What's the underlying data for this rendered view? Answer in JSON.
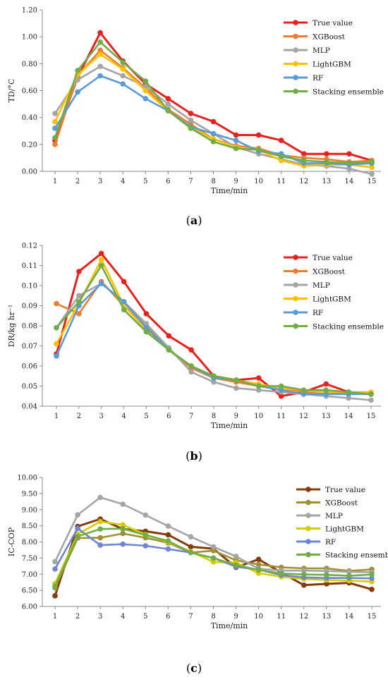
{
  "chart_data": [
    {
      "type": "line",
      "panel_label": "(a)",
      "panel_letter": "a",
      "xlabel": "Time/min",
      "ylabel": "TD/°C",
      "ylim": [
        0,
        1.2
      ],
      "y_ticks": [
        "0.00",
        "0.20",
        "0.40",
        "0.60",
        "0.80",
        "1.00",
        "1.20"
      ],
      "x": [
        1,
        2,
        3,
        4,
        5,
        6,
        7,
        8,
        9,
        10,
        11,
        12,
        13,
        14,
        15
      ],
      "grid": false,
      "legend_position": "top-right",
      "series": [
        {
          "name": "True value",
          "color": "#e8211c",
          "values": [
            0.23,
            0.7,
            1.03,
            0.82,
            0.65,
            0.54,
            0.43,
            0.37,
            0.27,
            0.27,
            0.23,
            0.13,
            0.13,
            0.13,
            0.08
          ]
        },
        {
          "name": "XGBoost",
          "color": "#ed7d31",
          "values": [
            0.2,
            0.71,
            0.9,
            0.77,
            0.62,
            0.46,
            0.35,
            0.24,
            0.19,
            0.17,
            0.12,
            0.1,
            0.09,
            0.07,
            0.08
          ]
        },
        {
          "name": "MLP",
          "color": "#a5a5a5",
          "values": [
            0.43,
            0.68,
            0.78,
            0.71,
            0.63,
            0.5,
            0.38,
            0.28,
            0.18,
            0.13,
            0.09,
            0.05,
            0.04,
            0.02,
            -0.02
          ]
        },
        {
          "name": "LightGBM",
          "color": "#ffc000",
          "values": [
            0.37,
            0.72,
            0.87,
            0.76,
            0.6,
            0.45,
            0.33,
            0.24,
            0.18,
            0.16,
            0.08,
            0.04,
            0.05,
            0.05,
            0.03
          ]
        },
        {
          "name": "RF",
          "color": "#5b9bd5",
          "values": [
            0.32,
            0.59,
            0.71,
            0.65,
            0.54,
            0.45,
            0.33,
            0.28,
            0.23,
            0.15,
            0.13,
            0.06,
            0.06,
            0.05,
            0.06
          ]
        },
        {
          "name": "Stacking ensemble",
          "color": "#70ad47",
          "values": [
            0.25,
            0.75,
            0.96,
            0.81,
            0.67,
            0.45,
            0.32,
            0.22,
            0.17,
            0.16,
            0.11,
            0.08,
            0.07,
            0.06,
            0.07
          ]
        }
      ]
    },
    {
      "type": "line",
      "panel_label": "(b)",
      "panel_letter": "b",
      "xlabel": "Time/min",
      "ylabel": "DR/kg hr⁻¹",
      "ylim": [
        0.04,
        0.12
      ],
      "y_ticks": [
        "0.04",
        "0.05",
        "0.06",
        "0.07",
        "0.08",
        "0.09",
        "0.10",
        "0.11",
        "0.12"
      ],
      "x": [
        1,
        2,
        3,
        4,
        5,
        6,
        7,
        8,
        9,
        10,
        11,
        12,
        13,
        14,
        15
      ],
      "grid": false,
      "legend_position": "top-right",
      "series": [
        {
          "name": "True value",
          "color": "#e8211c",
          "values": [
            0.066,
            0.107,
            0.116,
            0.102,
            0.086,
            0.075,
            0.068,
            0.055,
            0.053,
            0.054,
            0.045,
            0.047,
            0.051,
            0.047,
            0.046
          ]
        },
        {
          "name": "XGBoost",
          "color": "#ed7d31",
          "values": [
            0.091,
            0.086,
            0.102,
            0.09,
            0.08,
            0.068,
            0.059,
            0.054,
            0.052,
            0.05,
            0.049,
            0.047,
            0.046,
            0.047,
            0.046
          ]
        },
        {
          "name": "MLP",
          "color": "#a5a5a5",
          "values": [
            0.079,
            0.095,
            0.101,
            0.092,
            0.081,
            0.069,
            0.057,
            0.052,
            0.049,
            0.048,
            0.047,
            0.046,
            0.045,
            0.044,
            0.043
          ]
        },
        {
          "name": "LightGBM",
          "color": "#ffc000",
          "values": [
            0.071,
            0.091,
            0.113,
            0.09,
            0.078,
            0.068,
            0.06,
            0.055,
            0.053,
            0.051,
            0.049,
            0.048,
            0.047,
            0.047,
            0.047
          ]
        },
        {
          "name": "RF",
          "color": "#5b9bd5",
          "values": [
            0.065,
            0.09,
            0.101,
            0.092,
            0.079,
            0.068,
            0.06,
            0.054,
            0.053,
            0.05,
            0.048,
            0.046,
            0.046,
            0.046,
            0.046
          ]
        },
        {
          "name": "Stacking ensemble",
          "color": "#70ad47",
          "values": [
            0.079,
            0.092,
            0.11,
            0.088,
            0.077,
            0.068,
            0.06,
            0.055,
            0.053,
            0.05,
            0.05,
            0.048,
            0.048,
            0.047,
            0.046
          ]
        }
      ]
    },
    {
      "type": "line",
      "panel_label": "(c)",
      "panel_letter": "c",
      "xlabel": "Time/min",
      "ylabel": "IC-COP",
      "ylim": [
        6.0,
        10.0
      ],
      "y_ticks": [
        "6.00",
        "6.50",
        "7.00",
        "7.50",
        "8.00",
        "8.50",
        "9.00",
        "9.50",
        "10.00"
      ],
      "x": [
        1,
        2,
        3,
        4,
        5,
        6,
        7,
        8,
        9,
        10,
        11,
        12,
        13,
        14,
        15
      ],
      "grid": false,
      "legend_position": "top-right",
      "series": [
        {
          "name": "True value",
          "color": "#843c0c",
          "values": [
            6.33,
            8.48,
            8.71,
            8.4,
            8.33,
            8.22,
            7.85,
            7.79,
            7.21,
            7.46,
            7.05,
            6.66,
            6.7,
            6.73,
            6.53
          ]
        },
        {
          "name": "XGBoost",
          "color": "#a09030",
          "values": [
            6.58,
            8.12,
            8.13,
            8.26,
            8.13,
            7.97,
            7.67,
            7.73,
            7.43,
            7.3,
            7.21,
            7.18,
            7.18,
            7.1,
            7.15
          ]
        },
        {
          "name": "MLP",
          "color": "#a5a5a5",
          "values": [
            7.39,
            8.84,
            9.38,
            9.17,
            8.83,
            8.49,
            8.16,
            7.85,
            7.55,
            7.17,
            7.11,
            7.11,
            7.1,
            7.07,
            7.06
          ]
        },
        {
          "name": "LightGBM",
          "color": "#d6cc00",
          "values": [
            6.71,
            8.24,
            8.63,
            8.53,
            8.23,
            8.0,
            7.7,
            7.38,
            7.36,
            7.03,
            6.92,
            6.85,
            6.82,
            6.8,
            6.77
          ]
        },
        {
          "name": "RF",
          "color": "#6f86d6",
          "values": [
            7.16,
            8.42,
            7.9,
            7.93,
            7.88,
            7.78,
            7.67,
            7.5,
            7.23,
            7.14,
            6.97,
            6.9,
            6.88,
            6.88,
            6.87
          ]
        },
        {
          "name": "Stacking ensemble",
          "color": "#70ad47",
          "values": [
            6.63,
            8.17,
            8.4,
            8.41,
            8.21,
            8.03,
            7.67,
            7.5,
            7.28,
            7.13,
            7.02,
            6.99,
            6.98,
            6.95,
            6.99
          ]
        }
      ]
    }
  ]
}
